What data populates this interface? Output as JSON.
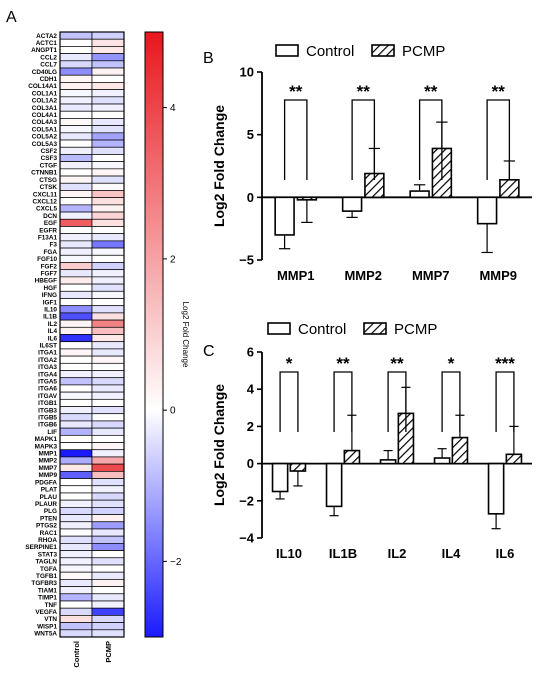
{
  "panel_letters": [
    "A",
    "B",
    "C"
  ],
  "chart_data": [
    {
      "panel": "A",
      "type": "heatmap",
      "columns": [
        "Control",
        "PCMP"
      ],
      "rows": [
        "ACTA2",
        "ACTC1",
        "ANGPT1",
        "CCL2",
        "CCL7",
        "CD40LG",
        "CDH1",
        "COL14A1",
        "COL1A1",
        "COL1A2",
        "COL3A1",
        "COL4A1",
        "COL4A3",
        "COL5A1",
        "COL5A2",
        "COL5A3",
        "CSF2",
        "CSF3",
        "CTGF",
        "CTNNB1",
        "CTSG",
        "CTSK",
        "CXCL11",
        "CXCL12",
        "CXCL5",
        "DCN",
        "EGF",
        "EGFR",
        "F13A1",
        "F3",
        "FGA",
        "FGF10",
        "FGF2",
        "FGF7",
        "HBEGF",
        "HGF",
        "IFNG",
        "IGF1",
        "IL10",
        "IL1B",
        "IL2",
        "IL4",
        "IL6",
        "IL6ST",
        "ITGA1",
        "ITGA2",
        "ITGA3",
        "ITGA4",
        "ITGA5",
        "ITGA6",
        "ITGAV",
        "ITGB1",
        "ITGB3",
        "ITGB5",
        "ITGB6",
        "LIF",
        "MAPK1",
        "MAPK3",
        "MMP1",
        "MMP2",
        "MMP7",
        "MMP9",
        "PDGFA",
        "PLAT",
        "PLAU",
        "PLAUR",
        "PLG",
        "PTEN",
        "PTGS2",
        "RAC1",
        "RHOA",
        "SERPINE1",
        "STAT3",
        "TAGLN",
        "TGFA",
        "TGFB1",
        "TGFBR3",
        "TIAM1",
        "TIMP1",
        "TNF",
        "VEGFA",
        "VTN",
        "WISP1",
        "WNT5A"
      ],
      "values": [
        [
          -0.8,
          -0.6
        ],
        [
          0.0,
          0.6
        ],
        [
          0.0,
          0.5
        ],
        [
          -0.3,
          -1.4
        ],
        [
          -0.5,
          -0.8
        ],
        [
          -1.5,
          0.3
        ],
        [
          0.2,
          0.0
        ],
        [
          0.3,
          0.5
        ],
        [
          -0.1,
          -0.2
        ],
        [
          -0.2,
          -0.4
        ],
        [
          -0.3,
          -0.2
        ],
        [
          0.0,
          0.0
        ],
        [
          0.1,
          -0.3
        ],
        [
          -0.1,
          -0.4
        ],
        [
          -0.3,
          -1.2
        ],
        [
          0.0,
          -1.0
        ],
        [
          -0.2,
          -0.4
        ],
        [
          -0.9,
          0.0
        ],
        [
          -0.2,
          -0.1
        ],
        [
          0.0,
          0.2
        ],
        [
          0.2,
          -0.4
        ],
        [
          -0.4,
          0.1
        ],
        [
          0.2,
          1.3
        ],
        [
          0.0,
          0.7
        ],
        [
          -1.0,
          0.3
        ],
        [
          -0.2,
          0.9
        ],
        [
          3.5,
          0.7
        ],
        [
          0.0,
          0.0
        ],
        [
          -0.2,
          -0.3
        ],
        [
          -0.3,
          -1.8
        ],
        [
          -0.2,
          -0.1
        ],
        [
          -0.1,
          0.0
        ],
        [
          1.1,
          -0.6
        ],
        [
          -0.3,
          -0.2
        ],
        [
          0.4,
          -0.2
        ],
        [
          0.0,
          -0.4
        ],
        [
          -0.3,
          -0.1
        ],
        [
          0.0,
          0.0
        ],
        [
          -1.5,
          -0.4
        ],
        [
          -2.3,
          0.7
        ],
        [
          0.2,
          2.7
        ],
        [
          0.3,
          1.4
        ],
        [
          -2.7,
          0.5
        ],
        [
          0.0,
          -0.3
        ],
        [
          0.2,
          -0.3
        ],
        [
          0.0,
          0.2
        ],
        [
          0.0,
          0.0
        ],
        [
          -0.2,
          -0.2
        ],
        [
          -0.8,
          -0.5
        ],
        [
          0.0,
          -0.3
        ],
        [
          -0.1,
          -0.2
        ],
        [
          0.0,
          0.0
        ],
        [
          -0.2,
          -0.4
        ],
        [
          -0.5,
          0.0
        ],
        [
          -0.3,
          -0.5
        ],
        [
          -1.0,
          -0.3
        ],
        [
          0.0,
          0.0
        ],
        [
          0.0,
          0.2
        ],
        [
          -3.0,
          -0.2
        ],
        [
          -1.1,
          1.9
        ],
        [
          0.5,
          3.9
        ],
        [
          -2.1,
          1.4
        ],
        [
          0.0,
          -0.4
        ],
        [
          0.0,
          -0.2
        ],
        [
          0.0,
          -0.5
        ],
        [
          -0.2,
          -0.4
        ],
        [
          -0.5,
          -0.6
        ],
        [
          -0.3,
          0.3
        ],
        [
          -0.2,
          -1.3
        ],
        [
          0.0,
          -0.3
        ],
        [
          -0.4,
          -0.8
        ],
        [
          -0.3,
          -1.5
        ],
        [
          -0.2,
          0.0
        ],
        [
          -0.2,
          -0.4
        ],
        [
          -0.1,
          0.0
        ],
        [
          0.1,
          -0.3
        ],
        [
          -0.3,
          0.3
        ],
        [
          -0.2,
          0.0
        ],
        [
          -1.0,
          -0.3
        ],
        [
          0.0,
          -0.2
        ],
        [
          -0.5,
          -2.5
        ],
        [
          0.7,
          -0.5
        ],
        [
          -0.8,
          -0.6
        ],
        [
          -0.5,
          -0.4
        ]
      ],
      "colorbar": {
        "label": "Log2 Fold Change",
        "ticks": [
          -2,
          0,
          2,
          4
        ],
        "vmin": -3,
        "vmax": 5,
        "low_color": "#1a1aff",
        "mid_color": "#ffffff",
        "high_color": "#e8171d"
      }
    },
    {
      "panel": "B",
      "type": "bar",
      "categories": [
        "MMP1",
        "MMP2",
        "MMP7",
        "MMP9"
      ],
      "series": [
        {
          "name": "Control",
          "values": [
            -3.0,
            -1.1,
            0.5,
            -2.1
          ],
          "errors": [
            1.1,
            0.5,
            0.5,
            2.3
          ]
        },
        {
          "name": "PCMP",
          "values": [
            -0.2,
            1.9,
            3.9,
            1.4
          ],
          "errors": [
            1.8,
            2.0,
            2.1,
            1.5
          ]
        }
      ],
      "significance": [
        "**",
        "**",
        "**",
        "**"
      ],
      "ylabel": "Log2 Fold Change",
      "ylim": [
        -5,
        10
      ],
      "yticks": [
        -5,
        0,
        5,
        10
      ],
      "legend_position": "top"
    },
    {
      "panel": "C",
      "type": "bar",
      "categories": [
        "IL10",
        "IL1B",
        "IL2",
        "IL4",
        "IL6"
      ],
      "series": [
        {
          "name": "Control",
          "values": [
            -1.5,
            -2.3,
            0.2,
            0.3,
            -2.7
          ],
          "errors": [
            0.4,
            0.5,
            0.5,
            0.5,
            0.8
          ]
        },
        {
          "name": "PCMP",
          "values": [
            -0.4,
            0.7,
            2.7,
            1.4,
            0.5
          ],
          "errors": [
            0.8,
            1.9,
            1.4,
            1.2,
            1.5
          ]
        }
      ],
      "significance": [
        "*",
        "**",
        "**",
        "*",
        "***"
      ],
      "ylabel": "Log2 Fold Change",
      "ylim": [
        -4,
        6
      ],
      "yticks": [
        -4,
        -2,
        0,
        2,
        4,
        6
      ],
      "legend_position": "top"
    }
  ]
}
